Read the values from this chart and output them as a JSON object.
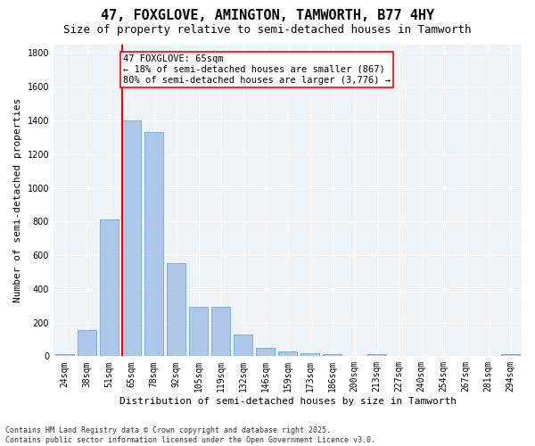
{
  "title": "47, FOXGLOVE, AMINGTON, TAMWORTH, B77 4HY",
  "subtitle": "Size of property relative to semi-detached houses in Tamworth",
  "xlabel": "Distribution of semi-detached houses by size in Tamworth",
  "ylabel": "Number of semi-detached properties",
  "categories": [
    "24sqm",
    "38sqm",
    "51sqm",
    "65sqm",
    "78sqm",
    "92sqm",
    "105sqm",
    "119sqm",
    "132sqm",
    "146sqm",
    "159sqm",
    "173sqm",
    "186sqm",
    "200sqm",
    "213sqm",
    "227sqm",
    "240sqm",
    "254sqm",
    "267sqm",
    "281sqm",
    "294sqm"
  ],
  "values": [
    15,
    155,
    810,
    1400,
    1330,
    550,
    295,
    295,
    130,
    50,
    30,
    20,
    15,
    0,
    15,
    0,
    0,
    0,
    0,
    0,
    10
  ],
  "bar_color": "#aec6e8",
  "bar_edgecolor": "#5a9fd4",
  "vline_bin": 3,
  "vline_color": "red",
  "annotation_text": "47 FOXGLOVE: 65sqm\n← 18% of semi-detached houses are smaller (867)\n80% of semi-detached houses are larger (3,776) →",
  "ylim": [
    0,
    1850
  ],
  "yticks": [
    0,
    200,
    400,
    600,
    800,
    1000,
    1200,
    1400,
    1600,
    1800
  ],
  "bg_color": "#eef3f8",
  "footnote": "Contains HM Land Registry data © Crown copyright and database right 2025.\nContains public sector information licensed under the Open Government Licence v3.0.",
  "title_fontsize": 11,
  "subtitle_fontsize": 9,
  "label_fontsize": 8,
  "tick_fontsize": 7,
  "annotation_fontsize": 7.5,
  "footnote_fontsize": 6
}
